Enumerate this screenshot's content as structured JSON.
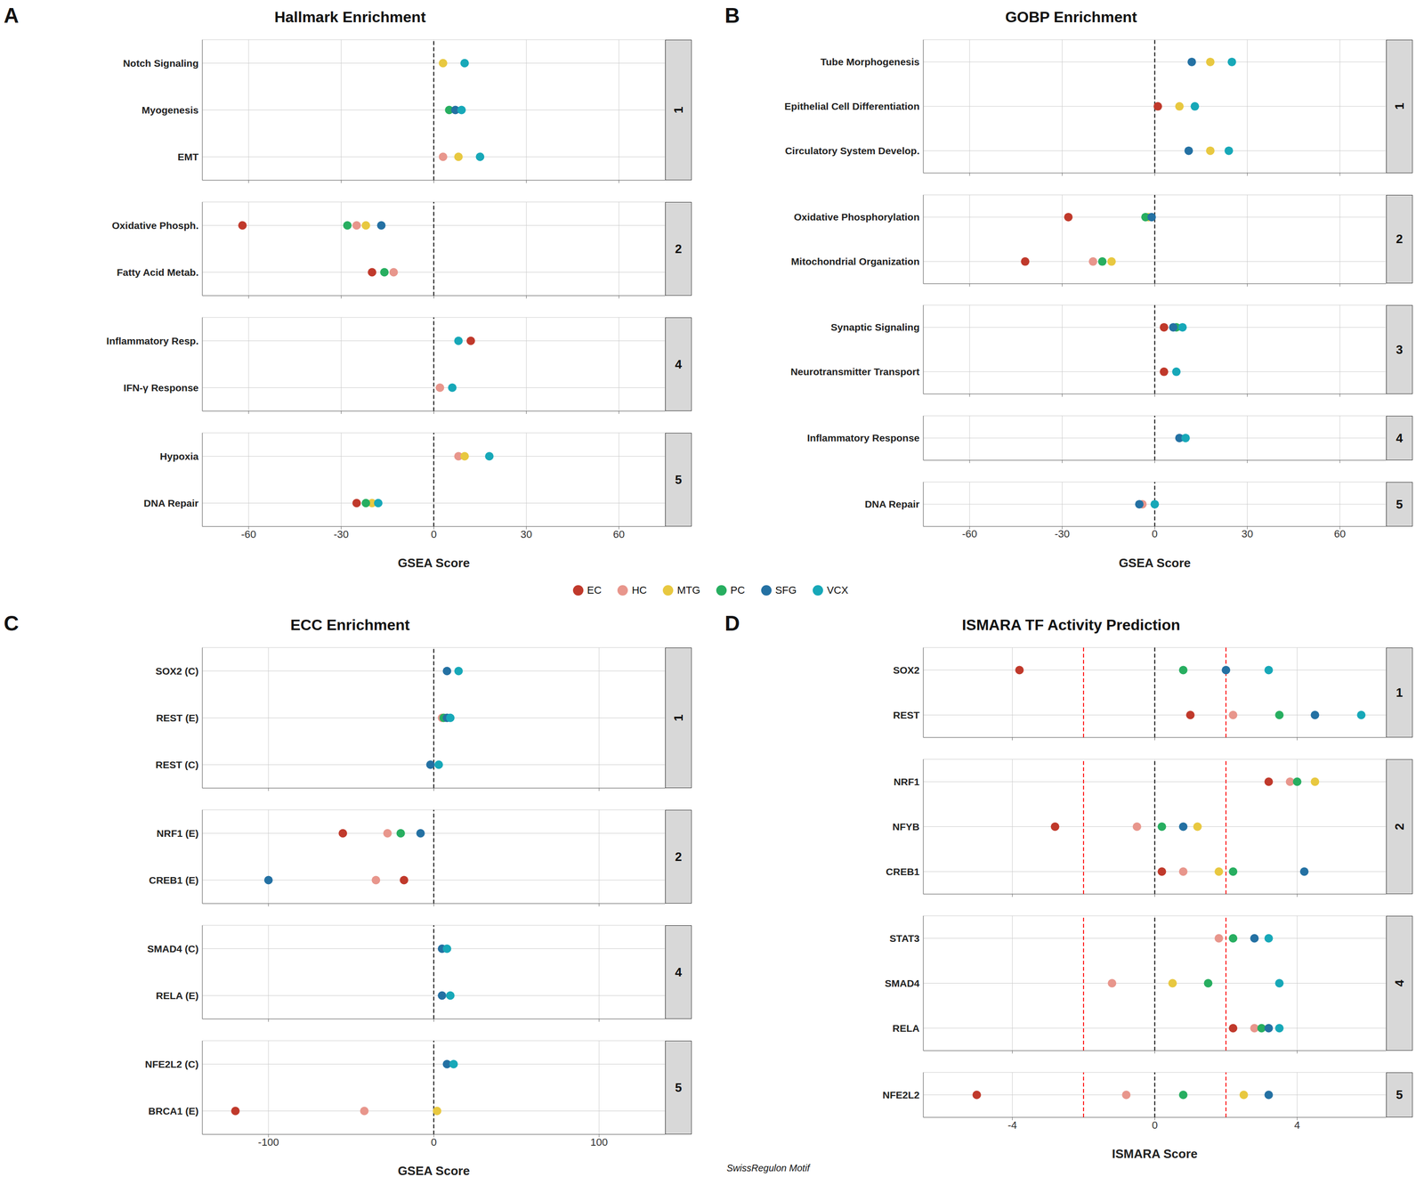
{
  "chart_data": {
    "type": "scatter",
    "grid": true,
    "legend": "center",
    "series": [
      {
        "name": "EC",
        "color": "#C0392B"
      },
      {
        "name": "HC",
        "color": "#E8968C"
      },
      {
        "name": "MTG",
        "color": "#E8C840"
      },
      {
        "name": "PC",
        "color": "#27AE60"
      },
      {
        "name": "SFG",
        "color": "#2471A3"
      },
      {
        "name": "VCX",
        "color": "#17A8B8"
      }
    ],
    "panels": [
      {
        "label": "A",
        "title": "Hallmark Enrichment",
        "x_label": "GSEA Score",
        "xlim": [
          -75,
          75
        ],
        "xticks": [
          -60,
          -30,
          0,
          30,
          60
        ],
        "reference_lines": [
          {
            "value": 0,
            "color": "black"
          }
        ],
        "groups": [
          {
            "label": "1",
            "categories": [
              "Notch Signaling",
              "Myogenesis",
              "EMT"
            ],
            "series": [
              {
                "name": "HC",
                "values": [
                  null,
                  null,
                  3
                ]
              },
              {
                "name": "MTG",
                "values": [
                  3,
                  null,
                  8
                ]
              },
              {
                "name": "PC",
                "values": [
                  null,
                  5,
                  null
                ]
              },
              {
                "name": "SFG",
                "values": [
                  null,
                  7,
                  null
                ]
              },
              {
                "name": "VCX",
                "values": [
                  10,
                  9,
                  15
                ]
              }
            ]
          },
          {
            "label": "2",
            "categories": [
              "Oxidative Phosph.",
              "Fatty Acid Metab."
            ],
            "series": [
              {
                "name": "EC",
                "values": [
                  -62,
                  -20
                ]
              },
              {
                "name": "HC",
                "values": [
                  -25,
                  -13
                ]
              },
              {
                "name": "MTG",
                "values": [
                  -22,
                  null
                ]
              },
              {
                "name": "PC",
                "values": [
                  -28,
                  -16
                ]
              },
              {
                "name": "SFG",
                "values": [
                  -17,
                  null
                ]
              }
            ]
          },
          {
            "label": "4",
            "categories": [
              "Inflammatory Resp.",
              "IFN-γ Response"
            ],
            "series": [
              {
                "name": "EC",
                "values": [
                  12,
                  null
                ]
              },
              {
                "name": "HC",
                "values": [
                  null,
                  2
                ]
              },
              {
                "name": "VCX",
                "values": [
                  8,
                  6
                ]
              }
            ]
          },
          {
            "label": "5",
            "categories": [
              "Hypoxia",
              "DNA Repair"
            ],
            "series": [
              {
                "name": "EC",
                "values": [
                  null,
                  -25
                ]
              },
              {
                "name": "HC",
                "values": [
                  8,
                  null
                ]
              },
              {
                "name": "MTG",
                "values": [
                  10,
                  -20
                ]
              },
              {
                "name": "PC",
                "values": [
                  null,
                  -22
                ]
              },
              {
                "name": "VCX",
                "values": [
                  18,
                  -18
                ]
              }
            ]
          }
        ]
      },
      {
        "label": "B",
        "title": "GOBP Enrichment",
        "x_label": "GSEA Score",
        "xlim": [
          -75,
          75
        ],
        "xticks": [
          -60,
          -30,
          0,
          30,
          60
        ],
        "reference_lines": [
          {
            "value": 0,
            "color": "black"
          }
        ],
        "groups": [
          {
            "label": "1",
            "categories": [
              "Tube Morphogenesis",
              "Epithelial Cell Differentiation",
              "Circulatory System Develop."
            ],
            "series": [
              {
                "name": "EC",
                "values": [
                  null,
                  1,
                  null
                ]
              },
              {
                "name": "MTG",
                "values": [
                  18,
                  8,
                  18
                ]
              },
              {
                "name": "SFG",
                "values": [
                  12,
                  null,
                  11
                ]
              },
              {
                "name": "VCX",
                "values": [
                  25,
                  13,
                  24
                ]
              }
            ]
          },
          {
            "label": "2",
            "categories": [
              "Oxidative Phosphorylation",
              "Mitochondrial Organization"
            ],
            "series": [
              {
                "name": "EC",
                "values": [
                  -28,
                  -42
                ]
              },
              {
                "name": "HC",
                "values": [
                  null,
                  -20
                ]
              },
              {
                "name": "MTG",
                "values": [
                  -2,
                  -14
                ]
              },
              {
                "name": "PC",
                "values": [
                  -3,
                  -17
                ]
              },
              {
                "name": "SFG",
                "values": [
                  -1,
                  null
                ]
              }
            ]
          },
          {
            "label": "3",
            "categories": [
              "Synaptic Signaling",
              "Neurotransmitter Transport"
            ],
            "series": [
              {
                "name": "EC",
                "values": [
                  3,
                  3
                ]
              },
              {
                "name": "PC",
                "values": [
                  7,
                  null
                ]
              },
              {
                "name": "SFG",
                "values": [
                  6,
                  null
                ]
              },
              {
                "name": "VCX",
                "values": [
                  9,
                  7
                ]
              }
            ]
          },
          {
            "label": "4",
            "categories": [
              "Inflammatory Response"
            ],
            "series": [
              {
                "name": "SFG",
                "values": [
                  8
                ]
              },
              {
                "name": "VCX",
                "values": [
                  10
                ]
              }
            ]
          },
          {
            "label": "5",
            "categories": [
              "DNA Repair"
            ],
            "series": [
              {
                "name": "HC",
                "values": [
                  -4
                ]
              },
              {
                "name": "SFG",
                "values": [
                  -5
                ]
              },
              {
                "name": "VCX",
                "values": [
                  0
                ]
              }
            ]
          }
        ]
      },
      {
        "label": "C",
        "title": "ECC Enrichment",
        "x_label": "GSEA Score",
        "xlim": [
          -140,
          140
        ],
        "xticks": [
          -100,
          0,
          100
        ],
        "reference_lines": [
          {
            "value": 0,
            "color": "black"
          }
        ],
        "groups": [
          {
            "label": "1",
            "categories": [
              "SOX2 (C)",
              "REST (E)",
              "REST (C)"
            ],
            "series": [
              {
                "name": "HC",
                "values": [
                  null,
                  5,
                  null
                ]
              },
              {
                "name": "PC",
                "values": [
                  null,
                  6,
                  null
                ]
              },
              {
                "name": "SFG",
                "values": [
                  8,
                  8,
                  -2
                ]
              },
              {
                "name": "VCX",
                "values": [
                  15,
                  10,
                  3
                ]
              }
            ]
          },
          {
            "label": "2",
            "categories": [
              "NRF1 (E)",
              "CREB1 (E)"
            ],
            "series": [
              {
                "name": "EC",
                "values": [
                  -55,
                  -18
                ]
              },
              {
                "name": "HC",
                "values": [
                  -28,
                  -35
                ]
              },
              {
                "name": "PC",
                "values": [
                  -20,
                  null
                ]
              },
              {
                "name": "SFG",
                "values": [
                  -8,
                  -100
                ]
              }
            ]
          },
          {
            "label": "4",
            "categories": [
              "SMAD4 (C)",
              "RELA (E)"
            ],
            "series": [
              {
                "name": "SFG",
                "values": [
                  5,
                  5
                ]
              },
              {
                "name": "VCX",
                "values": [
                  8,
                  10
                ]
              }
            ]
          },
          {
            "label": "5",
            "categories": [
              "NFE2L2 (C)",
              "BRCA1 (E)"
            ],
            "series": [
              {
                "name": "EC",
                "values": [
                  null,
                  -120
                ]
              },
              {
                "name": "HC",
                "values": [
                  null,
                  -42
                ]
              },
              {
                "name": "MTG",
                "values": [
                  null,
                  2
                ]
              },
              {
                "name": "SFG",
                "values": [
                  8,
                  null
                ]
              },
              {
                "name": "VCX",
                "values": [
                  12,
                  null
                ]
              }
            ]
          }
        ]
      },
      {
        "label": "D",
        "title": "ISMARA TF Activity Prediction",
        "x_label": "ISMARA Score",
        "xlim": [
          -6.5,
          6.5
        ],
        "xticks": [
          -4,
          0,
          4
        ],
        "reference_lines": [
          {
            "value": 0,
            "color": "black"
          },
          {
            "value": 2,
            "color": "red"
          },
          {
            "value": -2,
            "color": "red"
          }
        ],
        "annotation": "SwissRegulon Motif",
        "groups": [
          {
            "label": "1",
            "categories": [
              "SOX2",
              "REST"
            ],
            "series": [
              {
                "name": "EC",
                "values": [
                  -3.8,
                  1.0
                ]
              },
              {
                "name": "HC",
                "values": [
                  null,
                  2.2
                ]
              },
              {
                "name": "PC",
                "values": [
                  0.8,
                  3.5
                ]
              },
              {
                "name": "SFG",
                "values": [
                  2.0,
                  4.5
                ]
              },
              {
                "name": "VCX",
                "values": [
                  3.2,
                  5.8
                ]
              }
            ]
          },
          {
            "label": "2",
            "categories": [
              "NRF1",
              "NFYB",
              "CREB1"
            ],
            "series": [
              {
                "name": "EC",
                "values": [
                  3.2,
                  -2.8,
                  0.2
                ]
              },
              {
                "name": "HC",
                "values": [
                  3.8,
                  -0.5,
                  0.8
                ]
              },
              {
                "name": "MTG",
                "values": [
                  4.5,
                  1.2,
                  1.8
                ]
              },
              {
                "name": "PC",
                "values": [
                  4.0,
                  0.2,
                  2.2
                ]
              },
              {
                "name": "SFG",
                "values": [
                  null,
                  0.8,
                  4.2
                ]
              }
            ]
          },
          {
            "label": "4",
            "categories": [
              "STAT3",
              "SMAD4",
              "RELA"
            ],
            "series": [
              {
                "name": "EC",
                "values": [
                  null,
                  null,
                  2.2
                ]
              },
              {
                "name": "HC",
                "values": [
                  1.8,
                  -1.2,
                  2.8
                ]
              },
              {
                "name": "MTG",
                "values": [
                  null,
                  0.5,
                  null
                ]
              },
              {
                "name": "PC",
                "values": [
                  2.2,
                  1.5,
                  3.0
                ]
              },
              {
                "name": "SFG",
                "values": [
                  2.8,
                  null,
                  3.2
                ]
              },
              {
                "name": "VCX",
                "values": [
                  3.2,
                  3.5,
                  3.5
                ]
              }
            ]
          },
          {
            "label": "5",
            "categories": [
              "NFE2L2"
            ],
            "series": [
              {
                "name": "EC",
                "values": [
                  -5.0
                ]
              },
              {
                "name": "HC",
                "values": [
                  -0.8
                ]
              },
              {
                "name": "MTG",
                "values": [
                  2.5
                ]
              },
              {
                "name": "PC",
                "values": [
                  0.8
                ]
              },
              {
                "name": "SFG",
                "values": [
                  3.2
                ]
              }
            ]
          }
        ]
      }
    ]
  }
}
